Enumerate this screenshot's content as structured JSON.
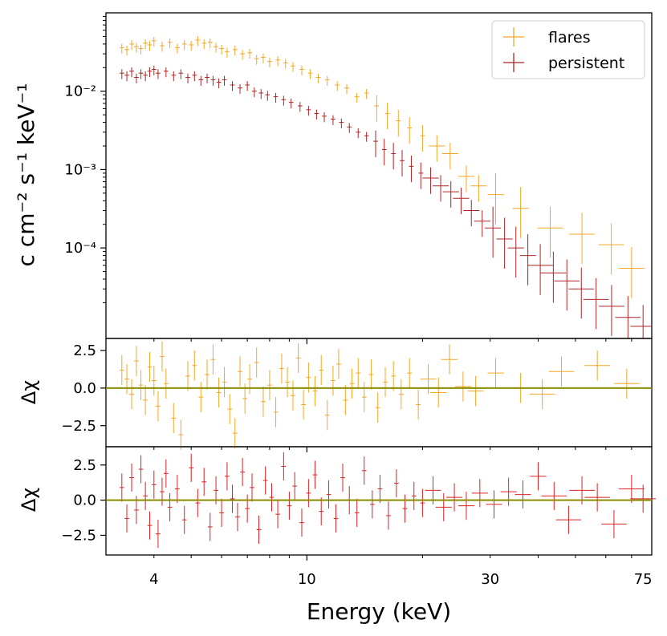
{
  "chart_data": [
    {
      "panel": "spectrum",
      "type": "scatter",
      "x_scale": "log",
      "y_scale": "log",
      "xlim": [
        3.0,
        79.0
      ],
      "ylim": [
        7e-06,
        0.1
      ],
      "xlabel": "Energy (keV)",
      "ylabel": "c cm⁻² s⁻¹ keV⁻¹",
      "y_ticks": [
        {
          "value": 0.01,
          "label": "10⁻²"
        },
        {
          "value": 0.001,
          "label": "10⁻³"
        },
        {
          "value": 0.0001,
          "label": "10⁻⁴"
        }
      ],
      "legend_position": "top-right",
      "series": [
        {
          "name": "flares",
          "color": "#f5a623",
          "points": [
            [
              3.3,
              0.036
            ],
            [
              3.4,
              0.034
            ],
            [
              3.5,
              0.04
            ],
            [
              3.6,
              0.037
            ],
            [
              3.7,
              0.035
            ],
            [
              3.8,
              0.041
            ],
            [
              3.9,
              0.039
            ],
            [
              4.0,
              0.044
            ],
            [
              4.2,
              0.038
            ],
            [
              4.4,
              0.042
            ],
            [
              4.6,
              0.036
            ],
            [
              4.8,
              0.04
            ],
            [
              5.0,
              0.039
            ],
            [
              5.2,
              0.045
            ],
            [
              5.4,
              0.041
            ],
            [
              5.6,
              0.042
            ],
            [
              5.8,
              0.037
            ],
            [
              6.0,
              0.035
            ],
            [
              6.2,
              0.032
            ],
            [
              6.5,
              0.034
            ],
            [
              6.8,
              0.03
            ],
            [
              7.1,
              0.031
            ],
            [
              7.4,
              0.026
            ],
            [
              7.7,
              0.027
            ],
            [
              8.0,
              0.024
            ],
            [
              8.4,
              0.025
            ],
            [
              8.8,
              0.023
            ],
            [
              9.2,
              0.021
            ],
            [
              9.7,
              0.019
            ],
            [
              10.2,
              0.017
            ],
            [
              10.7,
              0.015
            ],
            [
              11.3,
              0.014
            ],
            [
              12.0,
              0.012
            ],
            [
              12.7,
              0.011
            ],
            [
              13.5,
              0.0085
            ],
            [
              14.3,
              0.0095
            ],
            [
              15.2,
              0.0065
            ],
            [
              16.2,
              0.0052
            ],
            [
              17.3,
              0.0042
            ],
            [
              18.5,
              0.0034
            ],
            [
              20.0,
              0.0027
            ],
            [
              21.8,
              0.002
            ],
            [
              23.6,
              0.0016
            ],
            [
              26.0,
              0.00082
            ],
            [
              28.0,
              0.00062
            ],
            [
              31.0,
              0.00048
            ],
            [
              36.0,
              0.00032
            ],
            [
              43.0,
              0.00018
            ],
            [
              52.0,
              0.00015
            ],
            [
              62.0,
              0.00011
            ],
            [
              70.0,
              5.5e-05
            ]
          ]
        },
        {
          "name": "persistent",
          "color": "#b22222",
          "points": [
            [
              3.3,
              0.017
            ],
            [
              3.4,
              0.016
            ],
            [
              3.5,
              0.018
            ],
            [
              3.6,
              0.015
            ],
            [
              3.7,
              0.017
            ],
            [
              3.8,
              0.016
            ],
            [
              3.9,
              0.018
            ],
            [
              4.0,
              0.019
            ],
            [
              4.1,
              0.017
            ],
            [
              4.3,
              0.018
            ],
            [
              4.5,
              0.016
            ],
            [
              4.7,
              0.017
            ],
            [
              4.9,
              0.015
            ],
            [
              5.1,
              0.016
            ],
            [
              5.3,
              0.014
            ],
            [
              5.5,
              0.015
            ],
            [
              5.7,
              0.014
            ],
            [
              5.9,
              0.013
            ],
            [
              6.1,
              0.014
            ],
            [
              6.4,
              0.012
            ],
            [
              6.7,
              0.011
            ],
            [
              7.0,
              0.012
            ],
            [
              7.3,
              0.01
            ],
            [
              7.6,
              0.0095
            ],
            [
              7.9,
              0.009
            ],
            [
              8.3,
              0.0085
            ],
            [
              8.7,
              0.0078
            ],
            [
              9.1,
              0.0072
            ],
            [
              9.6,
              0.0065
            ],
            [
              10.1,
              0.0058
            ],
            [
              10.6,
              0.0052
            ],
            [
              11.1,
              0.0048
            ],
            [
              11.7,
              0.0044
            ],
            [
              12.3,
              0.004
            ],
            [
              12.9,
              0.0035
            ],
            [
              13.6,
              0.003
            ],
            [
              14.3,
              0.0027
            ],
            [
              15.1,
              0.0023
            ],
            [
              15.9,
              0.0018
            ],
            [
              16.8,
              0.0016
            ],
            [
              17.7,
              0.0013
            ],
            [
              18.7,
              0.0011
            ],
            [
              19.8,
              0.0009
            ],
            [
              21.0,
              0.00078
            ],
            [
              22.3,
              0.00062
            ],
            [
              23.7,
              0.00052
            ],
            [
              25.2,
              0.00043
            ],
            [
              26.8,
              0.0003
            ],
            [
              28.6,
              0.00022
            ],
            [
              30.5,
              0.00018
            ],
            [
              32.7,
              0.00013
            ],
            [
              35.0,
              0.0001
            ],
            [
              37.6,
              8e-05
            ],
            [
              40.5,
              6e-05
            ],
            [
              43.8,
              4.8e-05
            ],
            [
              47.5,
              3.8e-05
            ],
            [
              51.8,
              3e-05
            ],
            [
              56.6,
              2.2e-05
            ],
            [
              62.1,
              1.8e-05
            ],
            [
              68.5,
              1.3e-05
            ],
            [
              75.0,
              1e-05
            ]
          ]
        }
      ]
    },
    {
      "panel": "residuals-flares",
      "type": "scatter",
      "ylabel": "Δχ",
      "ylim": [
        -3.9,
        3.3
      ],
      "y_ticks": [
        {
          "value": 2.5,
          "label": "2.5"
        },
        {
          "value": 0.0,
          "label": "0.0"
        },
        {
          "value": -2.5,
          "label": "−2.5"
        }
      ],
      "baseline": 0.0,
      "baseline_color": "#8b8b00",
      "color": "#f5a623",
      "points": [
        [
          3.3,
          1.2
        ],
        [
          3.4,
          0.6
        ],
        [
          3.5,
          -0.4
        ],
        [
          3.6,
          1.8
        ],
        [
          3.7,
          0.2
        ],
        [
          3.8,
          -0.8
        ],
        [
          3.9,
          1.4
        ],
        [
          4.0,
          0.5
        ],
        [
          4.1,
          -1.2
        ],
        [
          4.2,
          2.1
        ],
        [
          4.3,
          0.3
        ],
        [
          4.5,
          -2.0
        ],
        [
          4.7,
          -3.1
        ],
        [
          4.9,
          0.8
        ],
        [
          5.1,
          1.5
        ],
        [
          5.3,
          -0.6
        ],
        [
          5.5,
          0.9
        ],
        [
          5.7,
          1.9
        ],
        [
          5.9,
          -0.3
        ],
        [
          6.1,
          0.4
        ],
        [
          6.3,
          -1.4
        ],
        [
          6.5,
          -3.0
        ],
        [
          6.7,
          1.1
        ],
        [
          6.9,
          -0.7
        ],
        [
          7.1,
          0.6
        ],
        [
          7.4,
          1.7
        ],
        [
          7.7,
          -0.9
        ],
        [
          8.0,
          0.2
        ],
        [
          8.3,
          -1.6
        ],
        [
          8.6,
          1.3
        ],
        [
          8.9,
          0.4
        ],
        [
          9.2,
          -0.5
        ],
        [
          9.5,
          2.0
        ],
        [
          9.8,
          -1.1
        ],
        [
          10.1,
          0.7
        ],
        [
          10.5,
          -0.2
        ],
        [
          10.9,
          1.2
        ],
        [
          11.3,
          -1.8
        ],
        [
          11.7,
          0.5
        ],
        [
          12.1,
          1.6
        ],
        [
          12.6,
          -0.8
        ],
        [
          13.1,
          0.3
        ],
        [
          13.6,
          1.0
        ],
        [
          14.1,
          -0.6
        ],
        [
          14.7,
          0.9
        ],
        [
          15.3,
          -1.3
        ],
        [
          16.0,
          0.4
        ],
        [
          16.8,
          0.8
        ],
        [
          17.6,
          -0.4
        ],
        [
          18.5,
          1.0
        ],
        [
          19.5,
          -1.1
        ],
        [
          20.7,
          0.6
        ],
        [
          22.0,
          -0.3
        ],
        [
          23.5,
          1.9
        ],
        [
          25.5,
          0.1
        ],
        [
          27.5,
          -0.2
        ],
        [
          31.0,
          1.0
        ],
        [
          36.0,
          0.0
        ],
        [
          41.0,
          -0.4
        ],
        [
          46.0,
          1.1
        ],
        [
          57.0,
          1.5
        ],
        [
          68.0,
          0.3
        ]
      ]
    },
    {
      "panel": "residuals-persistent",
      "type": "scatter",
      "xlabel": "Energy (keV)",
      "ylabel": "Δχ",
      "ylim": [
        -3.9,
        3.8
      ],
      "y_ticks": [
        {
          "value": 2.5,
          "label": "2.5"
        },
        {
          "value": 0.0,
          "label": "0.0"
        },
        {
          "value": -2.5,
          "label": "−2.5"
        }
      ],
      "x_ticks": [
        {
          "value": 4,
          "label": "4"
        },
        {
          "value": 10,
          "label": "10"
        },
        {
          "value": 30,
          "label": "30"
        },
        {
          "value": 75,
          "label": "75"
        }
      ],
      "baseline": 0.0,
      "baseline_color": "#8b8b00",
      "color": "#dd2222",
      "points": [
        [
          3.3,
          0.9
        ],
        [
          3.4,
          -1.3
        ],
        [
          3.5,
          1.6
        ],
        [
          3.6,
          -0.7
        ],
        [
          3.7,
          2.2
        ],
        [
          3.8,
          0.3
        ],
        [
          3.9,
          -1.8
        ],
        [
          4.0,
          1.1
        ],
        [
          4.1,
          -2.4
        ],
        [
          4.2,
          0.6
        ],
        [
          4.3,
          1.9
        ],
        [
          4.4,
          -0.5
        ],
        [
          4.6,
          0.8
        ],
        [
          4.8,
          -1.4
        ],
        [
          5.0,
          2.3
        ],
        [
          5.2,
          -0.2
        ],
        [
          5.4,
          1.3
        ],
        [
          5.6,
          -1.9
        ],
        [
          5.8,
          0.7
        ],
        [
          6.0,
          -0.9
        ],
        [
          6.2,
          1.7
        ],
        [
          6.4,
          0.1
        ],
        [
          6.6,
          -1.2
        ],
        [
          6.8,
          2.0
        ],
        [
          7.0,
          -0.6
        ],
        [
          7.2,
          0.9
        ],
        [
          7.5,
          -2.1
        ],
        [
          7.8,
          1.4
        ],
        [
          8.1,
          0.2
        ],
        [
          8.4,
          -1.0
        ],
        [
          8.7,
          2.4
        ],
        [
          9.0,
          -0.4
        ],
        [
          9.3,
          1.0
        ],
        [
          9.7,
          -1.6
        ],
        [
          10.1,
          0.5
        ],
        [
          10.5,
          1.8
        ],
        [
          10.9,
          -0.8
        ],
        [
          11.4,
          0.4
        ],
        [
          11.9,
          -1.3
        ],
        [
          12.4,
          1.6
        ],
        [
          12.9,
          0.0
        ],
        [
          13.5,
          -0.9
        ],
        [
          14.1,
          2.1
        ],
        [
          14.8,
          -0.3
        ],
        [
          15.5,
          0.8
        ],
        [
          16.3,
          -1.1
        ],
        [
          17.1,
          1.2
        ],
        [
          18.0,
          -0.6
        ],
        [
          19.0,
          0.3
        ],
        [
          20.0,
          -0.2
        ],
        [
          21.3,
          0.7
        ],
        [
          22.7,
          -0.5
        ],
        [
          24.2,
          0.2
        ],
        [
          26.0,
          -0.4
        ],
        [
          28.2,
          0.5
        ],
        [
          30.7,
          -0.3
        ],
        [
          33.5,
          0.6
        ],
        [
          36.5,
          0.4
        ],
        [
          40.0,
          1.7
        ],
        [
          44.0,
          0.3
        ],
        [
          48.0,
          -1.4
        ],
        [
          52.0,
          0.7
        ],
        [
          57.0,
          0.2
        ],
        [
          63.0,
          -1.7
        ],
        [
          70.0,
          0.8
        ],
        [
          75.0,
          0.1
        ]
      ]
    }
  ],
  "legend": {
    "items": [
      {
        "label": "flares",
        "color": "#f5a623"
      },
      {
        "label": "persistent",
        "color": "#b22222"
      }
    ]
  }
}
